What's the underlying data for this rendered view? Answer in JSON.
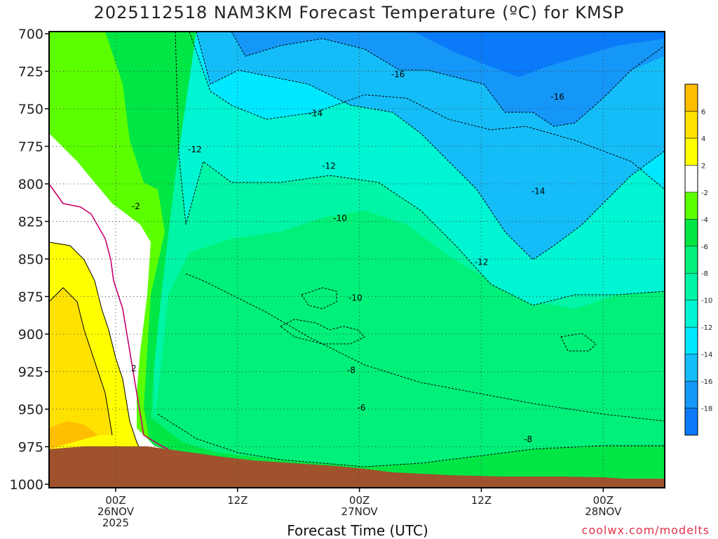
{
  "chart_data": {
    "type": "heatmap",
    "title": "2025112518 NAM3KM Forecast Temperature (ºC) for KMSP",
    "xlabel": "Forecast Time (UTC)",
    "ylabel": "",
    "credit": "coolwx.com/modelts",
    "y_ticks": [
      700,
      725,
      750,
      775,
      800,
      825,
      850,
      875,
      900,
      925,
      950,
      975,
      1000
    ],
    "ylim": [
      700,
      1000
    ],
    "y_inverted": true,
    "x_ticks": [
      {
        "hours": 6,
        "lines": [
          "00Z",
          "26NOV",
          "2025"
        ]
      },
      {
        "hours": 18,
        "lines": [
          "12Z"
        ]
      },
      {
        "hours": 30,
        "lines": [
          "00Z",
          "27NOV"
        ]
      },
      {
        "hours": 42,
        "lines": [
          "12Z"
        ]
      },
      {
        "hours": 54,
        "lines": [
          "00Z",
          "28NOV"
        ]
      }
    ],
    "xlim_hours": [
      0,
      60
    ],
    "colorbar": {
      "levels": [
        -20,
        -18,
        -16,
        -14,
        -12,
        -10,
        -8,
        -6,
        -4,
        -2,
        2,
        4,
        6,
        8
      ],
      "labels": [
        "-18",
        "-16",
        "-14",
        "-12",
        "-10",
        "-8",
        "-6",
        "-4",
        "-2",
        "2",
        "4",
        "6"
      ],
      "colors": [
        "#0a7af8",
        "#1597f8",
        "#14bdf8",
        "#00e8ff",
        "#00f5d2",
        "#00f5a6",
        "#00f07a",
        "#00e645",
        "#5cff00",
        "#ffffff",
        "#ffff00",
        "#ffe100",
        "#ffbe00"
      ]
    },
    "contour_labels": [
      {
        "text": "-16",
        "hours": 33.8,
        "level": 727
      },
      {
        "text": "-16",
        "hours": 49.5,
        "level": 742
      },
      {
        "text": "-14",
        "hours": 25.7,
        "level": 753
      },
      {
        "text": "-12",
        "hours": 13.8,
        "level": 777
      },
      {
        "text": "-12",
        "hours": 27.0,
        "level": 788
      },
      {
        "text": "-14",
        "hours": 47.6,
        "level": 805
      },
      {
        "text": "-2",
        "hours": 8.0,
        "level": 815
      },
      {
        "text": "-10",
        "hours": 28.1,
        "level": 823
      },
      {
        "text": "-12",
        "hours": 42.0,
        "level": 852
      },
      {
        "text": "-10",
        "hours": 29.6,
        "level": 876
      },
      {
        "text": "2",
        "hours": 7.8,
        "level": 923
      },
      {
        "text": "-8",
        "hours": 29.2,
        "level": 924
      },
      {
        "text": "-6",
        "hours": 30.2,
        "level": 949
      },
      {
        "text": "-8",
        "hours": 46.6,
        "level": 970
      }
    ],
    "terrain_color": "#a0522d",
    "legend_position": "right"
  }
}
